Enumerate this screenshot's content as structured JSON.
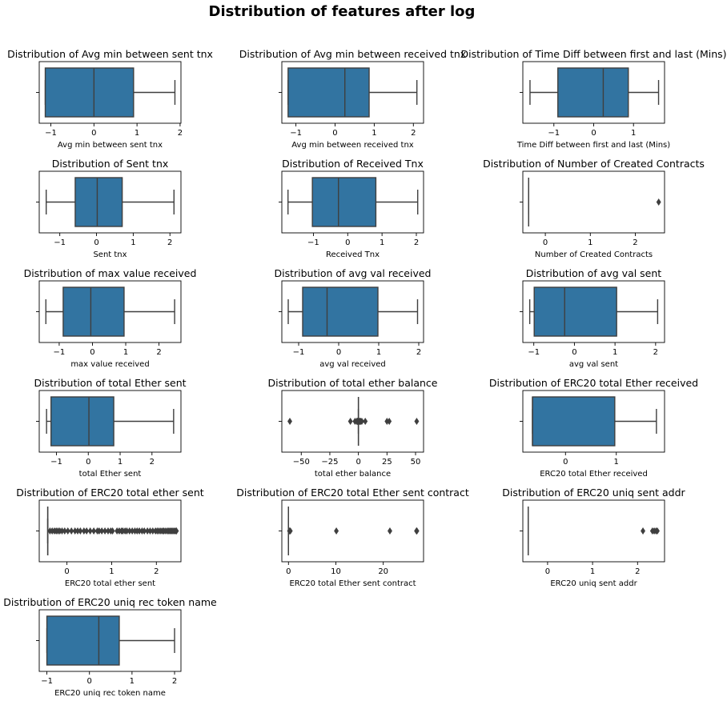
{
  "figure": {
    "title": "Distribution of features after log"
  },
  "colors": {
    "box_fill": "#3274a1",
    "line": "#3f3f3f",
    "axis": "#000000"
  },
  "chart_data": [
    {
      "type": "box",
      "title": "Distribution of Avg min between sent tnx",
      "xlabel": "Avg min between sent tnx",
      "xlim": [
        -1.27,
        2.02
      ],
      "ticks": [
        -1,
        0,
        1,
        2
      ],
      "tick_labels": [
        "−1",
        "0",
        "1",
        "2"
      ],
      "whisker_low": -1.13,
      "q1": -1.13,
      "median": 0.0,
      "q3": 0.92,
      "whisker_high": 1.88,
      "outliers": []
    },
    {
      "type": "box",
      "title": "Distribution of Avg min between received tnx",
      "xlabel": "Avg min between received tnx",
      "xlabel_dummy": "",
      "xlim": [
        -1.36,
        2.26
      ],
      "ticks": [
        -1,
        0,
        1,
        2
      ],
      "tick_labels": [
        "−1",
        "0",
        "1",
        "2"
      ],
      "whisker_low": -1.2,
      "q1": -1.2,
      "median": 0.25,
      "q3": 0.87,
      "whisker_high": 2.09,
      "outliers": []
    },
    {
      "type": "box",
      "title": "Distribution of Time Diff between first and last (Mins)",
      "xlabel": "Time Diff between first and last (Mins)",
      "xlim": [
        -1.78,
        1.78
      ],
      "ticks": [
        -1,
        0,
        1
      ],
      "tick_labels": [
        "−1",
        "0",
        "1"
      ],
      "whisker_low": -1.6,
      "q1": -0.9,
      "median": 0.24,
      "q3": 0.87,
      "whisker_high": 1.63,
      "outliers": []
    },
    {
      "type": "box",
      "title": "Distribution of Sent tnx",
      "xlabel": "Sent tnx",
      "xlim": [
        -1.56,
        2.3
      ],
      "ticks": [
        -1,
        0,
        1,
        2
      ],
      "tick_labels": [
        "−1",
        "0",
        "1",
        "2"
      ],
      "whisker_low": -1.37,
      "q1": -0.58,
      "median": 0.02,
      "q3": 0.7,
      "whisker_high": 2.11,
      "outliers": []
    },
    {
      "type": "box",
      "title": "Distribution of Received Tnx",
      "xlabel": "Received Tnx",
      "xlim": [
        -1.92,
        2.21
      ],
      "ticks": [
        -1,
        0,
        1,
        2
      ],
      "tick_labels": [
        "−1",
        "0",
        "1",
        "2"
      ],
      "whisker_low": -1.74,
      "q1": -1.03,
      "median": -0.27,
      "q3": 0.82,
      "whisker_high": 2.04,
      "outliers": []
    },
    {
      "type": "box",
      "title": "Distribution of Number of Created Contracts",
      "xlabel": "Number of Created Contracts",
      "xlim": [
        -0.5,
        2.65
      ],
      "ticks": [
        0,
        1,
        2
      ],
      "tick_labels": [
        "0",
        "1",
        "2"
      ],
      "whisker_low": -0.37,
      "q1": -0.37,
      "median": -0.37,
      "q3": -0.37,
      "whisker_high": -0.37,
      "outliers": [
        2.52
      ]
    },
    {
      "type": "box",
      "title": "Distribution of max value received",
      "xlabel": "max value received",
      "xlim": [
        -1.6,
        2.66
      ],
      "ticks": [
        -1,
        0,
        1,
        2
      ],
      "tick_labels": [
        "−1",
        "0",
        "1",
        "2"
      ],
      "whisker_low": -1.4,
      "q1": -0.88,
      "median": -0.05,
      "q3": 0.95,
      "whisker_high": 2.47,
      "outliers": []
    },
    {
      "type": "box",
      "title": "Distribution of avg val received",
      "xlabel": "avg val received",
      "xlim": [
        -1.42,
        2.12
      ],
      "ticks": [
        -1,
        0,
        1,
        2
      ],
      "tick_labels": [
        "−1",
        "0",
        "1",
        "2"
      ],
      "whisker_low": -1.26,
      "q1": -0.9,
      "median": -0.29,
      "q3": 0.98,
      "whisker_high": 1.97,
      "outliers": []
    },
    {
      "type": "box",
      "title": "Distribution of avg val sent",
      "xlabel": "avg val sent",
      "xlim": [
        -1.27,
        2.22
      ],
      "ticks": [
        -1,
        0,
        1,
        2
      ],
      "tick_labels": [
        "−1",
        "0",
        "1",
        "2"
      ],
      "whisker_low": -1.1,
      "q1": -0.99,
      "median": -0.24,
      "q3": 1.04,
      "whisker_high": 2.05,
      "outliers": []
    },
    {
      "type": "box",
      "title": "Distribution of total Ether sent",
      "xlabel": "total Ether sent",
      "xlim": [
        -1.54,
        2.91
      ],
      "ticks": [
        -1,
        0,
        1,
        2
      ],
      "tick_labels": [
        "−1",
        "0",
        "1",
        "2"
      ],
      "whisker_low": -1.31,
      "q1": -1.17,
      "median": 0.02,
      "q3": 0.8,
      "whisker_high": 2.68,
      "outliers": []
    },
    {
      "type": "box",
      "title": "Distribution of total ether balance",
      "xlabel": "total ether balance",
      "xlim": [
        -67,
        57
      ],
      "ticks": [
        -50,
        -25,
        0,
        25,
        50
      ],
      "tick_labels": [
        "−50",
        "−25",
        "0",
        "25",
        "50"
      ],
      "whisker_low": 0.0,
      "q1": 0.0,
      "median": 0.0,
      "q3": 0.0,
      "whisker_high": 0.0,
      "outliers": [
        -60,
        -7,
        -3,
        -1.5,
        -1,
        -0.5,
        0.5,
        1,
        1.5,
        2,
        3,
        6,
        25,
        27,
        51
      ]
    },
    {
      "type": "box",
      "title": "Distribution of  ERC20 total Ether received",
      "xlabel": "ERC20 total Ether received",
      "xlim": [
        -0.84,
        1.95
      ],
      "ticks": [
        0,
        1
      ],
      "tick_labels": [
        "0",
        "1"
      ],
      "whisker_low": -0.65,
      "q1": -0.65,
      "median": -0.65,
      "q3": 0.97,
      "whisker_high": 1.79,
      "outliers": []
    },
    {
      "type": "box",
      "title": "Distribution of  ERC20 total ether sent",
      "xlabel": "ERC20 total ether sent",
      "xlim": [
        -0.62,
        2.55
      ],
      "ticks": [
        0,
        1,
        2
      ],
      "tick_labels": [
        "0",
        "1",
        "2"
      ],
      "whisker_low": -0.43,
      "q1": -0.43,
      "median": -0.43,
      "q3": -0.43,
      "whisker_high": -0.43,
      "outliers": [
        -0.38,
        -0.33,
        -0.28,
        -0.24,
        -0.2,
        -0.16,
        -0.11,
        -0.05,
        0.02,
        0.1,
        0.18,
        0.24,
        0.3,
        0.38,
        0.44,
        0.52,
        0.6,
        0.68,
        0.72,
        0.78,
        0.85,
        0.92,
        0.98,
        1.02,
        1.12,
        1.17,
        1.22,
        1.25,
        1.3,
        1.34,
        1.4,
        1.46,
        1.52,
        1.57,
        1.62,
        1.68,
        1.73,
        1.8,
        1.86,
        1.92,
        1.98,
        2.02,
        2.06,
        2.1,
        2.14,
        2.17,
        2.21,
        2.25,
        2.28,
        2.31,
        2.34,
        2.37,
        2.4,
        2.43,
        2.45
      ]
    },
    {
      "type": "box",
      "title": "Distribution of  ERC20 total Ether sent contract",
      "xlabel": "ERC20 total Ether sent contract",
      "xlim": [
        -1.4,
        28.5
      ],
      "ticks": [
        0,
        10,
        20
      ],
      "tick_labels": [
        "0",
        "10",
        "20"
      ],
      "whisker_low": 0.0,
      "q1": 0.0,
      "median": 0.0,
      "q3": 0.0,
      "whisker_high": 0.0,
      "outliers": [
        0.2,
        0.4,
        10.1,
        21.4,
        27.0,
        27.1
      ]
    },
    {
      "type": "box",
      "title": "Distribution of  ERC20 uniq sent addr",
      "xlabel": "ERC20 uniq sent addr",
      "xlim": [
        -0.55,
        2.6
      ],
      "ticks": [
        0,
        1,
        2
      ],
      "tick_labels": [
        "0",
        "1",
        "2"
      ],
      "whisker_low": -0.43,
      "q1": -0.43,
      "median": -0.43,
      "q3": -0.43,
      "whisker_high": -0.43,
      "outliers": [
        2.12,
        2.33,
        2.37,
        2.41,
        2.44
      ]
    },
    {
      "type": "box",
      "title": "Distribution of  ERC20 uniq rec token name",
      "xlabel": "ERC20 uniq rec token name",
      "xlim": [
        -1.18,
        2.15
      ],
      "ticks": [
        -1,
        0,
        1,
        2
      ],
      "tick_labels": [
        "−1",
        "0",
        "1",
        "2"
      ],
      "whisker_low": -1.0,
      "q1": -1.0,
      "median": 0.22,
      "q3": 0.7,
      "whisker_high": 2.0,
      "outliers": []
    }
  ]
}
